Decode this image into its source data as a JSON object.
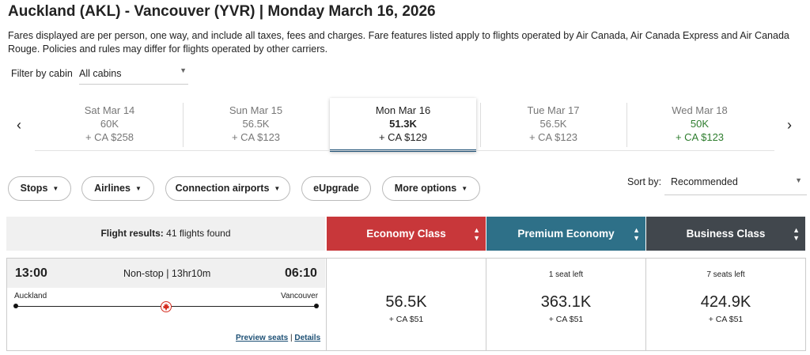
{
  "header": {
    "title": "Auckland (AKL) - Vancouver (YVR)  |  Monday March 16, 2026",
    "notice": "Fares displayed are per person, one way, and include all taxes, fees and charges. Fare features listed apply to flights operated by Air Canada, Air Canada Express and Air Canada Rouge. Policies and rules may differ for flights operated by other carriers."
  },
  "cabin_filter": {
    "label": "Filter by cabin",
    "value": "All cabins"
  },
  "date_nav": {
    "prev_icon": "chevron-left-icon",
    "next_icon": "chevron-right-icon",
    "dates": [
      {
        "day": "Sat Mar 14",
        "points": "60K",
        "cash": "+ CA $258"
      },
      {
        "day": "Sun Mar 15",
        "points": "56.5K",
        "cash": "+ CA $123"
      },
      {
        "day": "Mon Mar 16",
        "points": "51.3K",
        "cash": "+ CA $129"
      },
      {
        "day": "Tue Mar 17",
        "points": "56.5K",
        "cash": "+ CA $123"
      },
      {
        "day": "Wed Mar 18",
        "points": "50K",
        "cash": "+ CA $123"
      }
    ],
    "selected_index": 2,
    "lowest_index": 4
  },
  "filters": {
    "stops": "Stops",
    "airlines": "Airlines",
    "connection_airports": "Connection airports",
    "eupgrade": "eUpgrade",
    "more_options": "More options"
  },
  "sort": {
    "label": "Sort by:",
    "value": "Recommended"
  },
  "results": {
    "label": "Flight results:",
    "count": "41 flights found"
  },
  "cabins": [
    {
      "name": "Economy Class",
      "color": "#c8373a"
    },
    {
      "name": "Premium Economy",
      "color": "#2e7088"
    },
    {
      "name": "Business Class",
      "color": "#41474d"
    }
  ],
  "flight": {
    "depart_time": "13:00",
    "arrive_time": "06:10",
    "summary": "Non-stop | 13hr10m",
    "origin": "Auckland",
    "destination": "Vancouver",
    "airline_icon": "maple-leaf-icon",
    "preview_seats": "Preview seats",
    "separator": "|",
    "details": "Details",
    "fares": [
      {
        "seats": "",
        "points": "56.5K",
        "cash": "+ CA $51"
      },
      {
        "seats": "1 seat left",
        "points": "363.1K",
        "cash": "+ CA $51"
      },
      {
        "seats": "7 seats left",
        "points": "424.9K",
        "cash": "+ CA $51"
      }
    ]
  },
  "colors": {
    "accent": "#1c4f74",
    "lowest_fare": "#2e7d2e",
    "maple_red": "#d52b1e"
  }
}
